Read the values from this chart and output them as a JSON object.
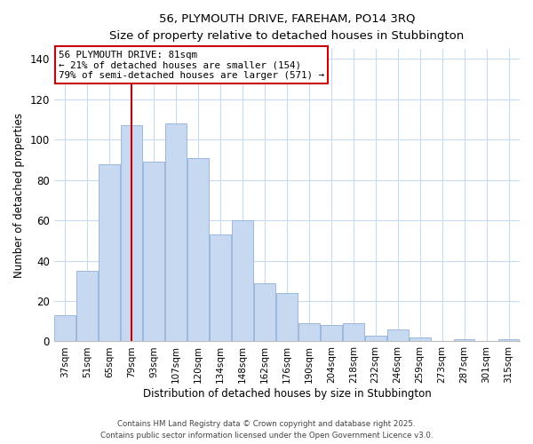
{
  "title_line1": "56, PLYMOUTH DRIVE, FAREHAM, PO14 3RQ",
  "title_line2": "Size of property relative to detached houses in Stubbington",
  "xlabel": "Distribution of detached houses by size in Stubbington",
  "ylabel": "Number of detached properties",
  "bar_labels": [
    "37sqm",
    "51sqm",
    "65sqm",
    "79sqm",
    "93sqm",
    "107sqm",
    "120sqm",
    "134sqm",
    "148sqm",
    "162sqm",
    "176sqm",
    "190sqm",
    "204sqm",
    "218sqm",
    "232sqm",
    "246sqm",
    "259sqm",
    "273sqm",
    "287sqm",
    "301sqm",
    "315sqm"
  ],
  "bar_values": [
    13,
    35,
    88,
    107,
    89,
    108,
    91,
    53,
    60,
    29,
    24,
    9,
    8,
    9,
    3,
    6,
    2,
    0,
    1,
    0,
    1
  ],
  "bar_color": "#c6d9f1",
  "bar_edge_color": "#9ab8dc",
  "vline_x_index": 3,
  "vline_color": "#cc0000",
  "ylim": [
    0,
    145
  ],
  "yticks": [
    0,
    20,
    40,
    60,
    80,
    100,
    120,
    140
  ],
  "annotation_line1": "56 PLYMOUTH DRIVE: 81sqm",
  "annotation_line2": "← 21% of detached houses are smaller (154)",
  "annotation_line3": "79% of semi-detached houses are larger (571) →",
  "annotation_box_color": "#ffffff",
  "annotation_box_edge": "#cc0000",
  "footer_line1": "Contains HM Land Registry data © Crown copyright and database right 2025.",
  "footer_line2": "Contains public sector information licensed under the Open Government Licence v3.0.",
  "background_color": "#ffffff",
  "grid_color": "#c8daf0"
}
